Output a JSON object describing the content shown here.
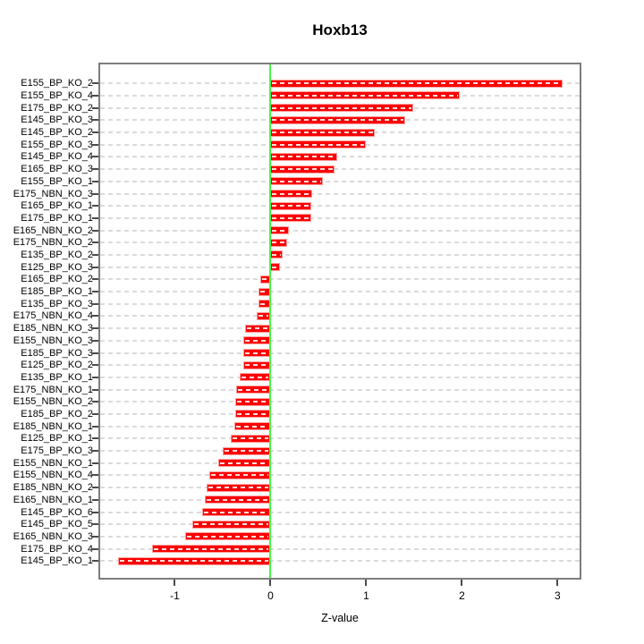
{
  "chart_data": {
    "type": "bar",
    "orientation": "horizontal",
    "title": "Hoxb13",
    "xlabel": "Z-value",
    "categories": [
      "E155_BP_KO_2",
      "E155_BP_KO_4",
      "E175_BP_KO_2",
      "E145_BP_KO_3",
      "E145_BP_KO_2",
      "E155_BP_KO_3",
      "E145_BP_KO_4",
      "E165_BP_KO_3",
      "E155_BP_KO_1",
      "E175_NBN_KO_3",
      "E165_BP_KO_1",
      "E175_BP_KO_1",
      "E165_NBN_KO_2",
      "E175_NBN_KO_2",
      "E135_BP_KO_2",
      "E125_BP_KO_3",
      "E165_BP_KO_2",
      "E185_BP_KO_1",
      "E135_BP_KO_3",
      "E175_NBN_KO_4",
      "E185_NBN_KO_3",
      "E155_NBN_KO_3",
      "E185_BP_KO_3",
      "E125_BP_KO_2",
      "E135_BP_KO_1",
      "E175_NBN_KO_1",
      "E155_NBN_KO_2",
      "E185_BP_KO_2",
      "E185_NBN_KO_1",
      "E125_BP_KO_1",
      "E175_BP_KO_3",
      "E155_NBN_KO_1",
      "E155_NBN_KO_4",
      "E185_NBN_KO_2",
      "E165_NBN_KO_1",
      "E145_BP_KO_6",
      "E145_BP_KO_5",
      "E165_NBN_KO_3",
      "E175_BP_KO_4",
      "E145_BP_KO_1"
    ],
    "values": [
      3.05,
      1.98,
      1.49,
      1.41,
      1.09,
      1.0,
      0.7,
      0.67,
      0.55,
      0.44,
      0.43,
      0.43,
      0.19,
      0.17,
      0.13,
      0.1,
      -0.11,
      -0.13,
      -0.13,
      -0.14,
      -0.27,
      -0.28,
      -0.28,
      -0.28,
      -0.32,
      -0.36,
      -0.37,
      -0.37,
      -0.38,
      -0.42,
      -0.5,
      -0.55,
      -0.64,
      -0.67,
      -0.69,
      -0.71,
      -0.82,
      -0.89,
      -1.24,
      -1.59
    ],
    "x_ticks": [
      -1,
      0,
      1,
      2,
      3
    ],
    "xlim": [
      -1.78,
      3.23
    ],
    "grid": true,
    "legend": false,
    "colors": {
      "bar": "#fb0000",
      "bar_border": "#ff9d9d",
      "bar_center_dash": "#ffffff",
      "zero_line": "#45f545",
      "gridline": "#dbdbdb",
      "axis_box": "#7d7d7d",
      "tick": "#4a4a4a",
      "text": "#000000"
    }
  }
}
